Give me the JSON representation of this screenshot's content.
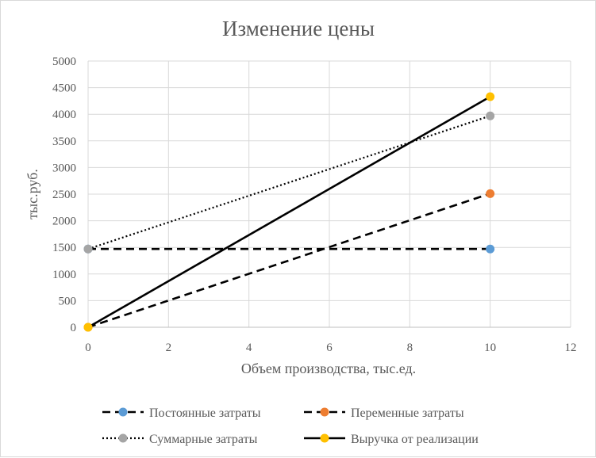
{
  "chart_data": {
    "type": "scatter",
    "title": "Изменение цены",
    "xlabel": "Объем производства, тыс.ед.",
    "ylabel": "тыс.руб.",
    "xlim": [
      0,
      12
    ],
    "ylim": [
      0,
      5000
    ],
    "x_ticks": [
      0,
      2,
      4,
      6,
      8,
      10,
      12
    ],
    "y_ticks": [
      0,
      500,
      1000,
      1500,
      2000,
      2500,
      3000,
      3500,
      4000,
      4500,
      5000
    ],
    "grid": true,
    "legend_position": "bottom",
    "series": [
      {
        "name": "Постоянные затраты",
        "line_style": "dashed",
        "marker_color": "#5b9bd5",
        "x": [
          0,
          10
        ],
        "y": [
          1470,
          1470
        ]
      },
      {
        "name": "Переменные затраты",
        "line_style": "dashed",
        "marker_color": "#ed7d31",
        "x": [
          0,
          10
        ],
        "y": [
          0,
          2510
        ]
      },
      {
        "name": "Суммарные затраты",
        "line_style": "dotted",
        "marker_color": "#a5a5a5",
        "x": [
          0,
          10
        ],
        "y": [
          1470,
          3970
        ]
      },
      {
        "name": "Выручка от реализации",
        "line_style": "solid",
        "marker_color": "#ffc000",
        "x": [
          0,
          10
        ],
        "y": [
          0,
          4330
        ]
      }
    ]
  }
}
